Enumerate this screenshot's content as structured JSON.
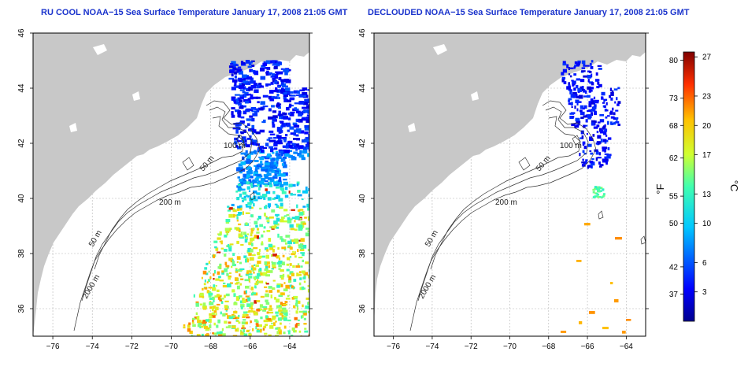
{
  "panels": [
    {
      "title": "RU COOL NOAA−15 Sea Surface Temperature January 17, 2008 21:05 GMT",
      "contours": [
        "100 m",
        "50 m",
        "200 m",
        "50 m",
        "2000 m"
      ]
    },
    {
      "title": "DECLOUDED NOAA−15 Sea Surface Temperature January 17, 2008 21:05 GMT",
      "contours": [
        "100 m",
        "50 m",
        "200 m",
        "50 m",
        "2000 m"
      ]
    }
  ],
  "axes": {
    "x_ticks": [
      "−76",
      "−74",
      "−72",
      "−70",
      "−68",
      "−66",
      "−64"
    ],
    "x_values": [
      -76,
      -74,
      -72,
      -70,
      -68,
      -66,
      -64
    ],
    "y_ticks": [
      "36",
      "38",
      "40",
      "42",
      "44",
      "46"
    ],
    "y_values": [
      36,
      38,
      40,
      42,
      44,
      46
    ],
    "xlim": [
      -77,
      -63
    ],
    "ylim": [
      35,
      46
    ]
  },
  "colorbar": {
    "f_label": "°F",
    "c_label": "°C",
    "f_ticks": [
      "80",
      "73",
      "68",
      "62",
      "55",
      "50",
      "42",
      "37"
    ],
    "f_values": [
      80,
      73,
      68,
      62,
      55,
      50,
      42,
      37
    ],
    "c_ticks": [
      "27",
      "23",
      "20",
      "17",
      "13",
      "10",
      "6",
      "3"
    ],
    "c_values": [
      27,
      23,
      20,
      17,
      13,
      10,
      6,
      3
    ],
    "range_c": [
      0,
      27.5
    ]
  },
  "colors": {
    "title": "#1a33cc",
    "land": "#c8c8c8",
    "ocean": "#ffffff",
    "grid": "#b4b4b4",
    "contour": "#333333"
  }
}
